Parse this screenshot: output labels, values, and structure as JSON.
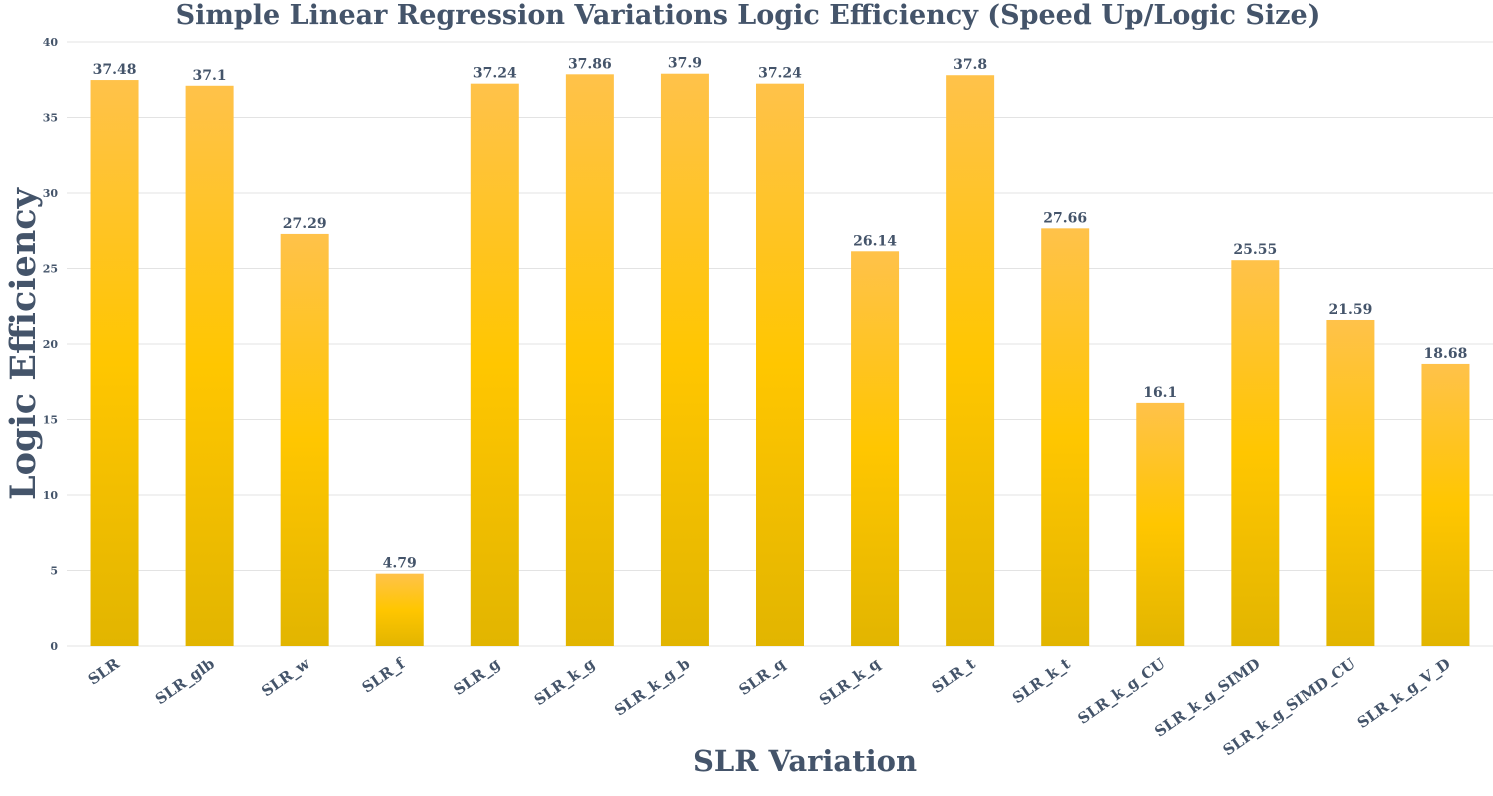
{
  "chart_data": {
    "type": "bar",
    "title": "Simple Linear Regression Variations Logic Efficiency (Speed Up/Logic Size)",
    "xlabel": "SLR Variation",
    "ylabel": "Logic Efficiency",
    "categories": [
      "SLR",
      "SLR_glb",
      "SLR_w",
      "SLR_f",
      "SLR_g",
      "SLR_k_g",
      "SLR_k_g_b",
      "SLR_q",
      "SLR_k_q",
      "SLR_t",
      "SLR_k_t",
      "SLR_k_g_CU",
      "SLR_k_g_SIMD",
      "SLR_k_g_SIMD_CU",
      "SLR_k_g_V_D"
    ],
    "values": [
      37.48,
      37.1,
      27.29,
      4.79,
      37.24,
      37.86,
      37.9,
      37.24,
      26.14,
      37.8,
      27.66,
      16.1,
      25.55,
      21.59,
      18.68
    ],
    "value_labels": [
      "37.48",
      "37.1",
      "27.29",
      "4.79",
      "37.24",
      "37.86",
      "37.9",
      "37.24",
      "26.14",
      "37.8",
      "27.66",
      "16.1",
      "25.55",
      "21.59",
      "18.68"
    ],
    "ylim": [
      0,
      40
    ],
    "yticks": [
      0,
      5,
      10,
      15,
      20,
      25,
      30,
      35,
      40
    ],
    "grid": true,
    "legend": "none",
    "colors": {
      "bar_top": "#ffc24a",
      "bar_mid": "#ffc600",
      "bar_bottom": "#e2b500",
      "text": "#44546a",
      "grid": "#e3e3e3"
    }
  }
}
